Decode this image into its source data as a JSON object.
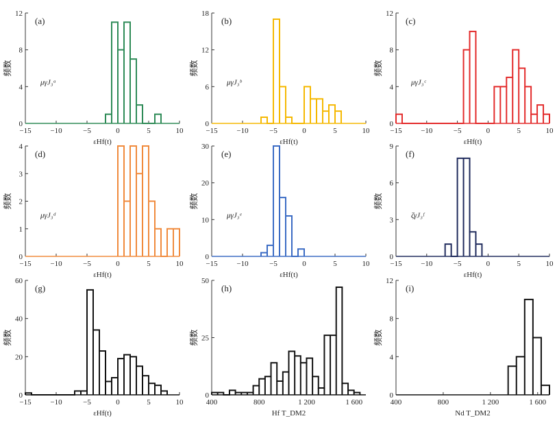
{
  "figure_note": "Nine histogram panels (a)-(i)",
  "chart_data": [
    {
      "id": "a",
      "panel_label": "(a)",
      "type": "histogram",
      "annotation": "μγJ₃ᵃ",
      "xlabel": "εHf(t)",
      "ylabel": "频数",
      "xlim": [
        -15,
        10
      ],
      "ylim": [
        0,
        12
      ],
      "xticks": [
        -15,
        -10,
        -5,
        0,
        5,
        10
      ],
      "yticks": [
        0,
        4,
        8,
        12
      ],
      "xtick_labels": [
        "−15",
        "−10",
        "−5",
        "0",
        "5",
        "10"
      ],
      "color": "#2e8b57",
      "bin_edges": [
        -2,
        -1,
        0,
        1,
        2,
        3,
        4,
        5,
        6,
        7
      ],
      "counts": [
        1,
        11,
        8,
        11,
        7,
        2,
        0,
        0,
        1
      ]
    },
    {
      "id": "b",
      "panel_label": "(b)",
      "type": "histogram",
      "annotation": "μγJ₃ᵇ",
      "xlabel": "εHf(t)",
      "ylabel": "频数",
      "xlim": [
        -15,
        10
      ],
      "ylim": [
        0,
        18
      ],
      "xticks": [
        -15,
        -10,
        -5,
        0,
        5,
        10
      ],
      "yticks": [
        0,
        6,
        12,
        18
      ],
      "xtick_labels": [
        "−15",
        "−10",
        "−5",
        "0",
        "5",
        "10"
      ],
      "color": "#f5b800",
      "bin_edges": [
        -7,
        -6,
        -5,
        -4,
        -3,
        -2,
        -1,
        0,
        1,
        2,
        3,
        4,
        5,
        6
      ],
      "counts": [
        1,
        0,
        17,
        6,
        1,
        0,
        0,
        6,
        4,
        4,
        2,
        3,
        2
      ]
    },
    {
      "id": "c",
      "panel_label": "(c)",
      "type": "histogram",
      "annotation": "μγJ₃ᶜ",
      "xlabel": "εHf(t)",
      "ylabel": "频数",
      "xlim": [
        -15,
        10
      ],
      "ylim": [
        0,
        12
      ],
      "xticks": [
        -15,
        -10,
        -5,
        0,
        5,
        10
      ],
      "yticks": [
        0,
        4,
        8,
        12
      ],
      "xtick_labels": [
        "−15",
        "−10",
        "−5",
        "0",
        "5",
        "10"
      ],
      "color": "#e32b2b",
      "bin_edges": [
        -15,
        -14,
        -13,
        -12,
        -11,
        -10,
        -9,
        -8,
        -7,
        -6,
        -5,
        -4,
        -3,
        -2,
        -1,
        0,
        1,
        2,
        3,
        4,
        5,
        6,
        7,
        8,
        9,
        10
      ],
      "counts": [
        1,
        0,
        0,
        0,
        0,
        0,
        0,
        0,
        0,
        0,
        0,
        8,
        10,
        0,
        0,
        0,
        4,
        4,
        5,
        8,
        6,
        4,
        1,
        2,
        1
      ]
    },
    {
      "id": "d",
      "panel_label": "(d)",
      "type": "histogram",
      "annotation": "μγJ₃ᵈ",
      "xlabel": "εHf(t)",
      "ylabel": "频数",
      "xlim": [
        -15,
        10
      ],
      "ylim": [
        0,
        4
      ],
      "xticks": [
        -15,
        -10,
        -5,
        0,
        5,
        10
      ],
      "yticks": [
        0,
        1,
        2,
        3,
        4
      ],
      "xtick_labels": [
        "−15",
        "−10",
        "−5",
        "0",
        "5",
        "10"
      ],
      "color": "#f08a3c",
      "bin_edges": [
        0,
        1,
        2,
        3,
        4,
        5,
        6,
        7,
        8,
        9,
        10
      ],
      "counts": [
        4,
        2,
        4,
        3,
        4,
        2,
        1,
        0,
        1,
        1
      ]
    },
    {
      "id": "e",
      "panel_label": "(e)",
      "type": "histogram",
      "annotation": "μγJ₃ᵉ",
      "xlabel": "εHf(t)",
      "ylabel": "频数",
      "xlim": [
        -15,
        10
      ],
      "ylim": [
        0,
        30
      ],
      "xticks": [
        -15,
        -10,
        -5,
        0,
        5,
        10
      ],
      "yticks": [
        0,
        10,
        20,
        30
      ],
      "xtick_labels": [
        "−15",
        "−10",
        "−5",
        "0",
        "5",
        "10"
      ],
      "color": "#3a6bc4",
      "bin_edges": [
        -7,
        -6,
        -5,
        -4,
        -3,
        -2,
        -1,
        0
      ],
      "counts": [
        1,
        3,
        30,
        16,
        11,
        0,
        2
      ]
    },
    {
      "id": "f",
      "panel_label": "(f)",
      "type": "histogram",
      "annotation": "ζγJ₃ᶠ",
      "xlabel": "εHf(t)",
      "ylabel": "频数",
      "xlim": [
        -15,
        10
      ],
      "ylim": [
        0,
        9
      ],
      "xticks": [
        -15,
        -10,
        -5,
        0,
        5,
        10
      ],
      "yticks": [
        0,
        3,
        6,
        9
      ],
      "xtick_labels": [
        "−15",
        "−10",
        "−5",
        "0",
        "5",
        "10"
      ],
      "color": "#1f2a5c",
      "bin_edges": [
        -7,
        -6,
        -5,
        -4,
        -3,
        -2,
        -1
      ],
      "counts": [
        1,
        0,
        8,
        8,
        2,
        1
      ]
    },
    {
      "id": "g",
      "panel_label": "(g)",
      "type": "histogram",
      "annotation": "",
      "xlabel": "εHf(t)",
      "ylabel": "频数",
      "xlim": [
        -15,
        10
      ],
      "ylim": [
        0,
        60
      ],
      "xticks": [
        -15,
        -10,
        -5,
        0,
        5,
        10
      ],
      "yticks": [
        0,
        20,
        40,
        60
      ],
      "xtick_labels": [
        "−15",
        "−10",
        "−5",
        "0",
        "5",
        "10"
      ],
      "color": "#111111",
      "bin_edges": [
        -15,
        -14,
        -13,
        -12,
        -11,
        -10,
        -9,
        -8,
        -7,
        -6,
        -5,
        -4,
        -3,
        -2,
        -1,
        0,
        1,
        2,
        3,
        4,
        5,
        6,
        7,
        8
      ],
      "counts": [
        1,
        0,
        0,
        0,
        0,
        0,
        0,
        0,
        2,
        2,
        55,
        34,
        23,
        7,
        9,
        19,
        21,
        20,
        15,
        10,
        6,
        5,
        2
      ]
    },
    {
      "id": "h",
      "panel_label": "(h)",
      "type": "histogram",
      "annotation": "",
      "xlabel": "Hf T_DM2",
      "ylabel": "频数",
      "xlim": [
        400,
        1700
      ],
      "ylim": [
        0,
        50
      ],
      "xticks": [
        400,
        800,
        1200,
        1600
      ],
      "yticks": [
        0,
        25,
        50
      ],
      "xtick_labels": [
        "400",
        "800",
        "1 200",
        "1 600"
      ],
      "color": "#111111",
      "bin_edges": [
        400,
        450,
        500,
        550,
        600,
        650,
        700,
        750,
        800,
        850,
        900,
        950,
        1000,
        1050,
        1100,
        1150,
        1200,
        1250,
        1300,
        1350,
        1400,
        1450,
        1500,
        1550,
        1600,
        1650
      ],
      "counts": [
        1,
        1,
        0,
        2,
        1,
        1,
        1,
        4,
        7,
        8,
        14,
        6,
        10,
        19,
        17,
        14,
        16,
        8,
        3,
        26,
        26,
        47,
        5,
        2,
        1
      ]
    },
    {
      "id": "i",
      "panel_label": "(i)",
      "type": "histogram",
      "annotation": "",
      "xlabel": "Nd T_DM2",
      "ylabel": "频数",
      "xlim": [
        400,
        1700
      ],
      "ylim": [
        0,
        12
      ],
      "xticks": [
        400,
        800,
        1200,
        1600
      ],
      "yticks": [
        0,
        4,
        8,
        12
      ],
      "xtick_labels": [
        "400",
        "800",
        "1 200",
        "1 600"
      ],
      "color": "#111111",
      "bin_edges": [
        1350,
        1420,
        1490,
        1560,
        1630,
        1700
      ],
      "counts": [
        3,
        4,
        10,
        6,
        1
      ]
    }
  ]
}
